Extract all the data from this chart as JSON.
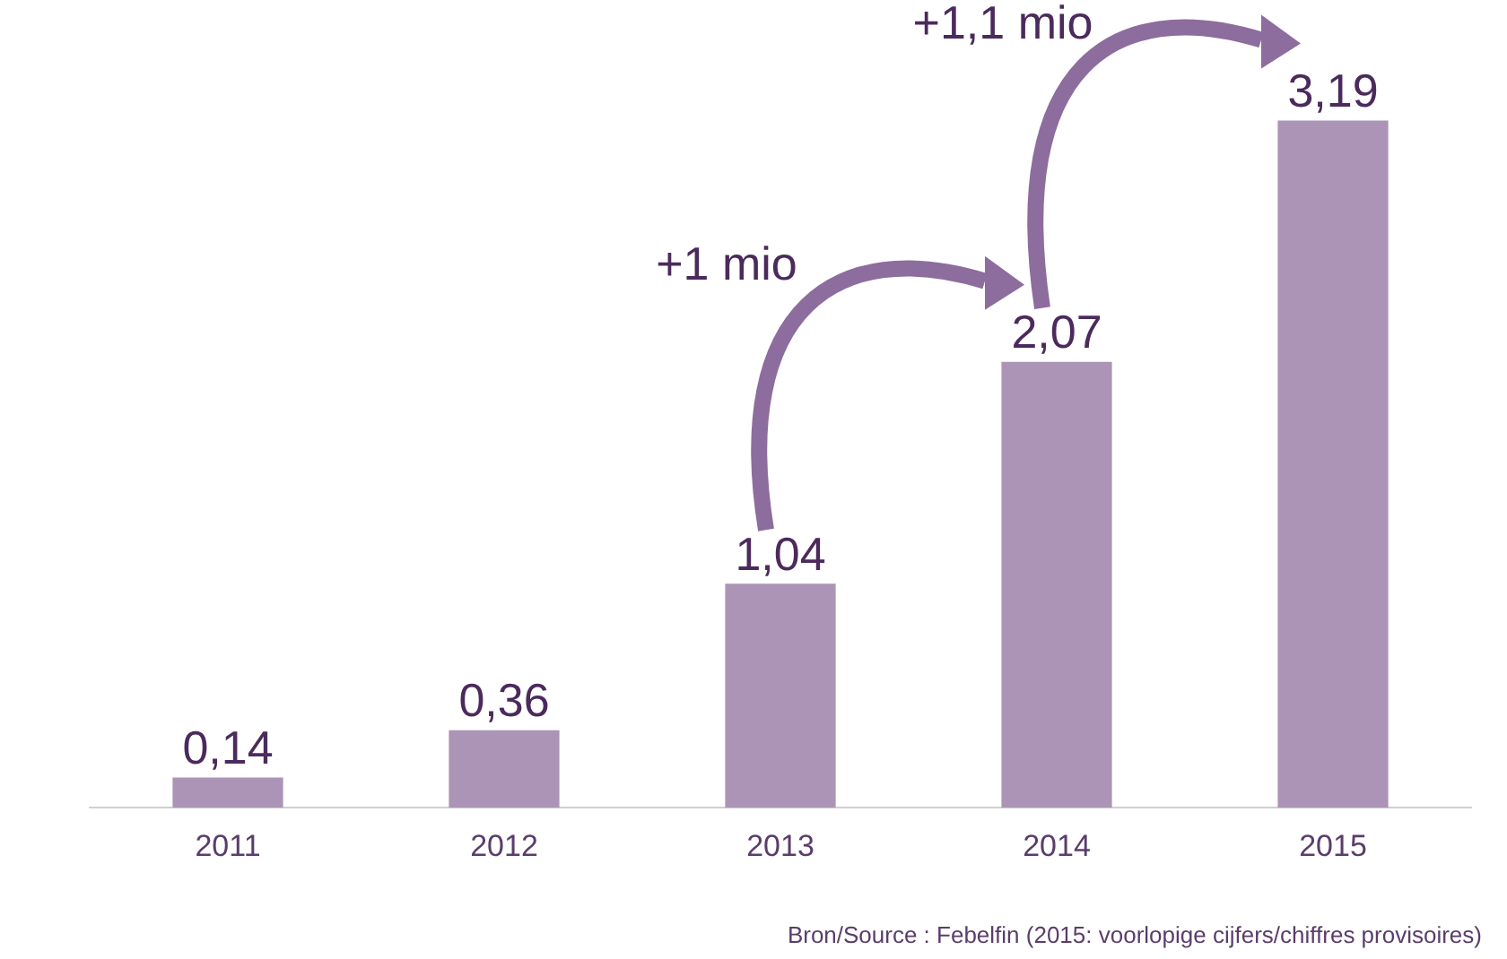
{
  "chart_data": {
    "type": "bar",
    "categories": [
      "2011",
      "2012",
      "2013",
      "2014",
      "2015"
    ],
    "values": [
      0.14,
      0.36,
      1.04,
      2.07,
      3.19
    ],
    "color": "#ab94b6",
    "value_labels": [
      "0,14",
      "0,36",
      "1,04",
      "2,07",
      "3,19"
    ],
    "tick_labels": "x",
    "grid": false,
    "legend": false,
    "annotations": [
      "+1 mio",
      "+1,1 mio",
      "Bron/Source : Febelfin (2015: voorlopige cijfers/chiffres provisoires)"
    ]
  }
}
